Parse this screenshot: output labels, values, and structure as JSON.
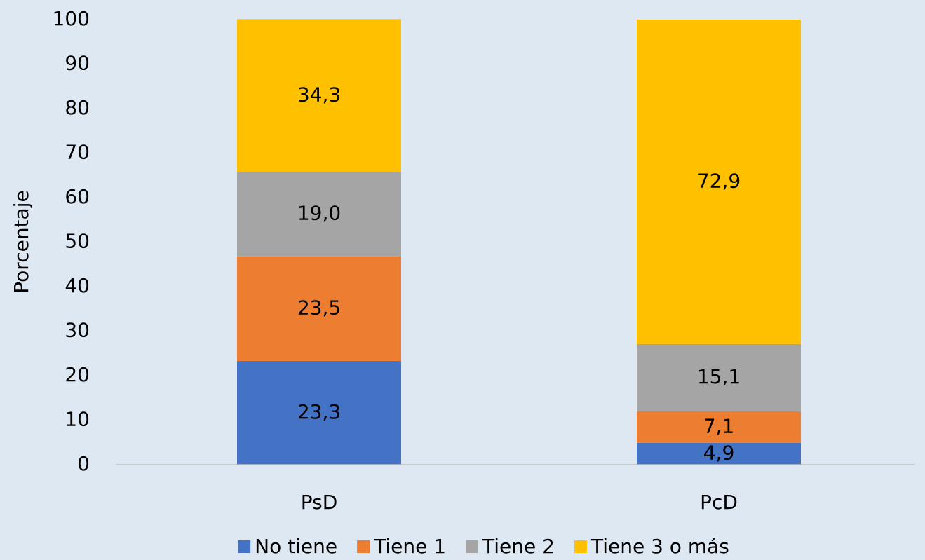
{
  "chart_data": {
    "type": "stacked_bar",
    "y_label": "Porcentaje",
    "categories": [
      "PsD",
      "PcD"
    ],
    "series": [
      {
        "name": "No tiene",
        "color": "#4472c4",
        "values": [
          23.3,
          4.9
        ],
        "value_labels": [
          "23,3",
          "4,9"
        ]
      },
      {
        "name": "Tiene 1",
        "color": "#ed7d31",
        "values": [
          23.5,
          7.1
        ],
        "value_labels": [
          "23,5",
          "7,1"
        ]
      },
      {
        "name": "Tiene 2",
        "color": "#a5a5a5",
        "values": [
          19.0,
          15.1
        ],
        "value_labels": [
          "19,0",
          "15,1"
        ]
      },
      {
        "name": "Tiene 3 o más",
        "color": "#ffc000",
        "values": [
          34.3,
          72.9
        ],
        "value_labels": [
          "34,3",
          "72,9"
        ]
      }
    ],
    "ylim": [
      0,
      100
    ],
    "yticks": [
      0,
      10,
      20,
      30,
      40,
      50,
      60,
      70,
      80,
      90,
      100
    ],
    "legend": "bottom"
  }
}
